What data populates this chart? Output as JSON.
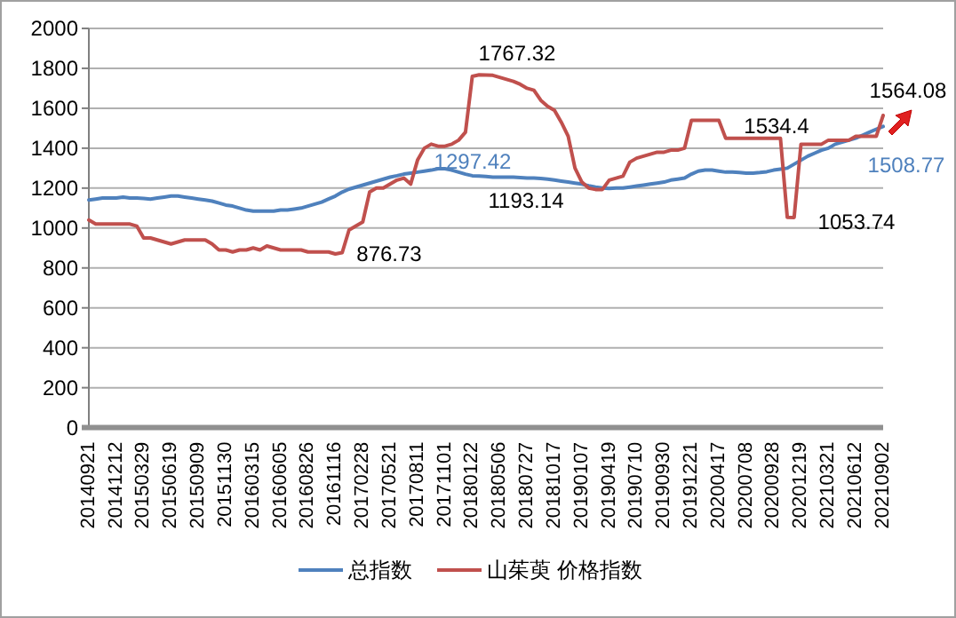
{
  "chart_data": {
    "type": "line",
    "categories": [
      "20140921",
      null,
      null,
      null,
      "20141212",
      null,
      null,
      null,
      "20150329",
      null,
      null,
      null,
      "20150619",
      null,
      null,
      null,
      "20150909",
      null,
      null,
      null,
      "20151130",
      null,
      null,
      null,
      "20160315",
      null,
      null,
      null,
      "20160605",
      null,
      null,
      null,
      "20160826",
      null,
      null,
      null,
      "20161116",
      null,
      null,
      null,
      "20170228",
      null,
      null,
      null,
      "20170521",
      null,
      null,
      null,
      "20170811",
      null,
      null,
      null,
      "20171101",
      null,
      null,
      null,
      "20180122",
      null,
      null,
      null,
      "20180506",
      null,
      null,
      null,
      "20180727",
      null,
      null,
      null,
      "20181017",
      null,
      null,
      null,
      "20190107",
      null,
      null,
      null,
      "20190419",
      null,
      null,
      null,
      "20190710",
      null,
      null,
      null,
      "20190930",
      null,
      null,
      null,
      "20191221",
      null,
      null,
      null,
      "20200417",
      null,
      null,
      null,
      "20200708",
      null,
      null,
      null,
      "20200928",
      null,
      null,
      null,
      "20201219",
      null,
      null,
      null,
      "20210321",
      null,
      null,
      null,
      "20210612",
      null,
      null,
      null,
      "20210902"
    ],
    "series": [
      {
        "name": "总指数",
        "color": "#4f81bd",
        "values": [
          1140,
          1145,
          1150,
          1150,
          1150,
          1155,
          1150,
          1150,
          1148,
          1145,
          1150,
          1155,
          1160,
          1160,
          1155,
          1150,
          1145,
          1140,
          1135,
          1125,
          1115,
          1110,
          1100,
          1090,
          1085,
          1085,
          1085,
          1085,
          1090,
          1090,
          1095,
          1100,
          1110,
          1120,
          1130,
          1145,
          1160,
          1180,
          1195,
          1205,
          1215,
          1225,
          1235,
          1245,
          1255,
          1262,
          1270,
          1275,
          1280,
          1285,
          1290,
          1297.42,
          1297,
          1290,
          1280,
          1270,
          1262,
          1260,
          1258,
          1255,
          1255,
          1255,
          1255,
          1253,
          1250,
          1250,
          1248,
          1245,
          1240,
          1235,
          1230,
          1225,
          1220,
          1212,
          1205,
          1200,
          1198,
          1200,
          1200,
          1205,
          1210,
          1215,
          1220,
          1225,
          1230,
          1240,
          1245,
          1250,
          1270,
          1285,
          1290,
          1290,
          1285,
          1280,
          1280,
          1278,
          1275,
          1275,
          1278,
          1282,
          1290,
          1295,
          1300,
          1320,
          1340,
          1360,
          1375,
          1390,
          1400,
          1420,
          1430,
          1440,
          1450,
          1465,
          1480,
          1495,
          1508.77
        ]
      },
      {
        "name": "山茱萸 价格指数",
        "color": "#c0504d",
        "values": [
          1040,
          1020,
          1020,
          1020,
          1020,
          1020,
          1020,
          1010,
          950,
          950,
          940,
          930,
          920,
          930,
          940,
          940,
          940,
          940,
          920,
          890,
          890,
          880,
          890,
          890,
          900,
          890,
          910,
          900,
          890,
          890,
          890,
          890,
          880,
          880,
          880,
          880,
          870,
          876.73,
          990,
          1010,
          1030,
          1180,
          1200,
          1200,
          1220,
          1240,
          1250,
          1220,
          1340,
          1400,
          1420,
          1410,
          1410,
          1420,
          1440,
          1480,
          1760,
          1767.32,
          1767,
          1765,
          1755,
          1745,
          1735,
          1720,
          1700,
          1690,
          1640,
          1610,
          1590,
          1530,
          1460,
          1300,
          1230,
          1200,
          1193.14,
          1193,
          1240,
          1250,
          1260,
          1330,
          1350,
          1360,
          1370,
          1380,
          1380,
          1390,
          1390,
          1400,
          1540,
          1540,
          1540,
          1540,
          1540,
          1450,
          1450,
          1450,
          1450,
          1450,
          1450,
          1450,
          1450,
          1450,
          1053.74,
          1053,
          1420,
          1420,
          1420,
          1420,
          1440,
          1440,
          1440,
          1440,
          1460,
          1460,
          1460,
          1460,
          1564.08
        ]
      }
    ],
    "ylim": [
      0,
      2000
    ],
    "yticks": [
      0,
      200,
      400,
      600,
      800,
      1000,
      1200,
      1400,
      1600,
      1800,
      2000
    ],
    "annotations": [
      "1767.32",
      "1297.42",
      "876.73",
      "1193.14",
      "1534.4",
      "1564.08",
      "1508.77",
      "1053.74"
    ],
    "grid": "y",
    "legend": "bottom"
  }
}
